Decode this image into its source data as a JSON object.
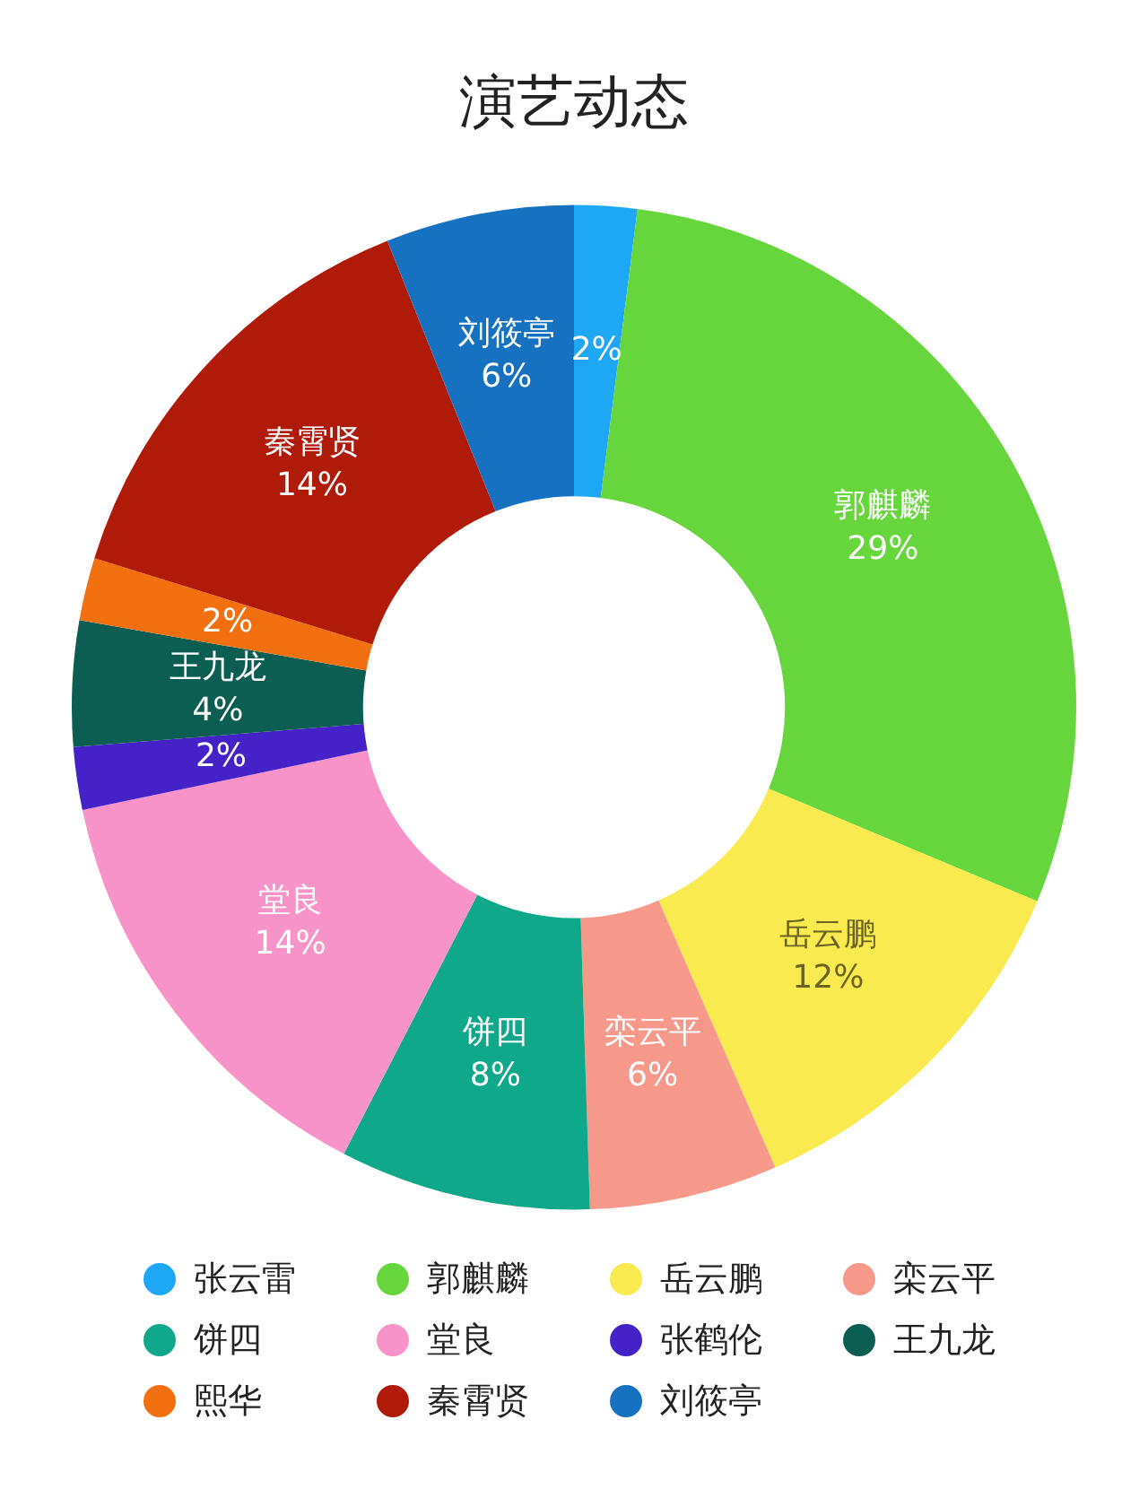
{
  "chart_data": {
    "type": "donut",
    "title": "演艺动态",
    "categories": [
      "张云雷",
      "郭麒麟",
      "岳云鹏",
      "栾云平",
      "饼四",
      "堂良",
      "张鹤伦",
      "王九龙",
      "熙华",
      "秦霄贤",
      "刘筱亭"
    ],
    "values": [
      2,
      29,
      12,
      6,
      8,
      14,
      2,
      4,
      2,
      14,
      6
    ],
    "colors": [
      "#1ea7f5",
      "#66d63c",
      "#f9ea50",
      "#f6988a",
      "#10a88a",
      "#f793c8",
      "#4422c8",
      "#0c5e52",
      "#f27010",
      "#b01a08",
      "#1672c0"
    ],
    "value_labels": [
      "2%",
      "郭麒麟\n29%",
      "岳云鹏\n12%",
      "栾云平\n6%",
      "饼四\n8%",
      "堂良\n14%",
      "2%",
      "王九龙\n4%",
      "2%",
      "秦霄贤\n14%",
      "刘筱亭\n6%"
    ],
    "legend": "bottom"
  }
}
